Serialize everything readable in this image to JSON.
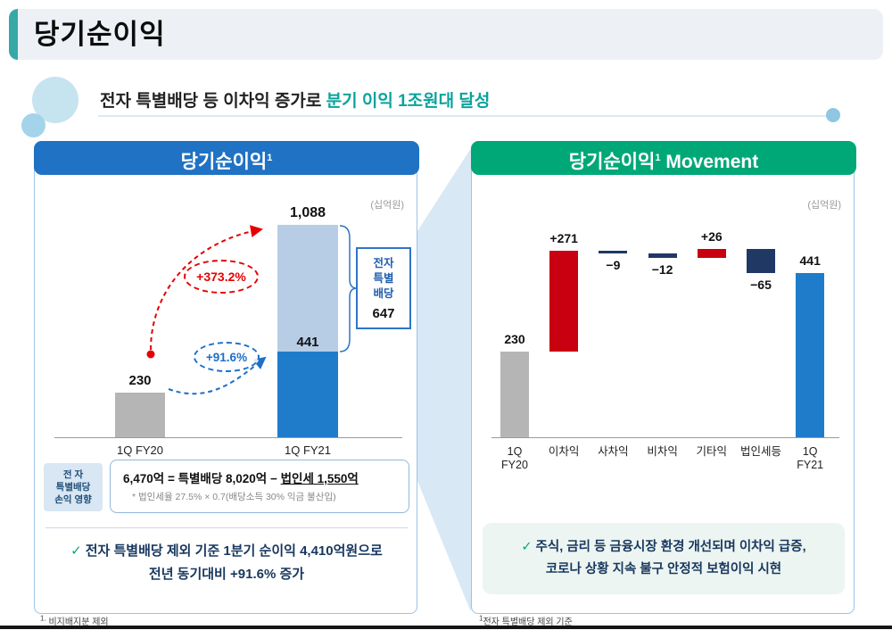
{
  "page": {
    "title": "당기순이익",
    "subtitle": {
      "black": "전자 특별배당 등 이차익 증가로 ",
      "teal": "분기 이익 1조원대 달성"
    },
    "footnotes": {
      "left_sup": "1.",
      "left_text": " 비지배지분 제외",
      "right_sup": "1",
      "right_text": "전자 특별배당 제외 기준"
    }
  },
  "left_panel": {
    "header_title": "당기순이익",
    "header_sup": "1",
    "impact": {
      "label_lines": [
        "전 자",
        "특별배당",
        "손익 영향"
      ],
      "formula_lead": "6,470억",
      "formula_mid": " = 특별배당 8,020억 − ",
      "formula_underline": "법인세 1,550억",
      "note": "* 법인세율 27.5% × 0.7(배당소득 30% 익금 불산입)"
    },
    "check": "✓",
    "bullet_l1": "전자 특별배당 제외 기준 1분기 순이익 4,410억원으로",
    "bullet_l2": "전년 동기대비 +91.6% 증가"
  },
  "right_panel": {
    "header_title": "당기순이익",
    "header_sup": "1",
    "header_suffix": " Movement",
    "check": "✓",
    "bullet_l1": "주식, 금리 등 금융시장 환경 개선되며 이차익 급증,",
    "bullet_l2": "코로나 상황 지속 불구 안정적 보험이익 시현"
  },
  "colors": {
    "accent_teal": "#35a8a8",
    "subtitle_teal": "#0aa39c",
    "header_blue": "#1f72c4",
    "header_green": "#00a878",
    "bar_gray": "#b5b5b5",
    "bar_blue": "#1e7ccb",
    "bar_lightblue": "#b7cde6",
    "bar_red": "#c80010",
    "bar_navy": "#1f3864",
    "growth_red": "#e60000",
    "growth_blue": "#1e6fc8",
    "bullet_navy": "#17375e"
  },
  "chart_data": [
    {
      "type": "bar",
      "subtype": "stacked",
      "title": "당기순이익 (1Q FY20 vs 1Q FY21)",
      "unit_label": "(십억원)",
      "categories": [
        "1Q FY20",
        "1Q FY21"
      ],
      "series": [
        {
          "name": "당기순이익(전자 특별배당 제외)",
          "values": [
            230,
            441
          ]
        },
        {
          "name": "전자 특별배당",
          "values": [
            0,
            647
          ]
        }
      ],
      "totals": [
        230,
        1088
      ],
      "total_labels": [
        "230",
        "1,088"
      ],
      "base_label": "441",
      "annotations": [
        {
          "text": "+373.2%"
        },
        {
          "text": "+91.6%"
        }
      ],
      "callout": {
        "lines": [
          "전자",
          "특별",
          "배당"
        ],
        "value": "647"
      },
      "ylim": [
        0,
        1100
      ],
      "grid": false
    },
    {
      "type": "bar",
      "subtype": "waterfall",
      "title": "당기순이익 Movement",
      "unit_label": "(십억원)",
      "categories": [
        "1Q\nFY20",
        "이차익",
        "사차익",
        "비차익",
        "기타익",
        "법인세등",
        "1Q\nFY21"
      ],
      "values": [
        230,
        271,
        -9,
        -12,
        26,
        -65,
        441
      ],
      "value_labels": [
        "230",
        "+271",
        "−9",
        "−12",
        "+26",
        "−65",
        "441"
      ],
      "roles": [
        "total",
        "delta",
        "delta",
        "delta",
        "delta",
        "delta",
        "total"
      ],
      "ylim": [
        0,
        530
      ],
      "grid": false
    }
  ]
}
